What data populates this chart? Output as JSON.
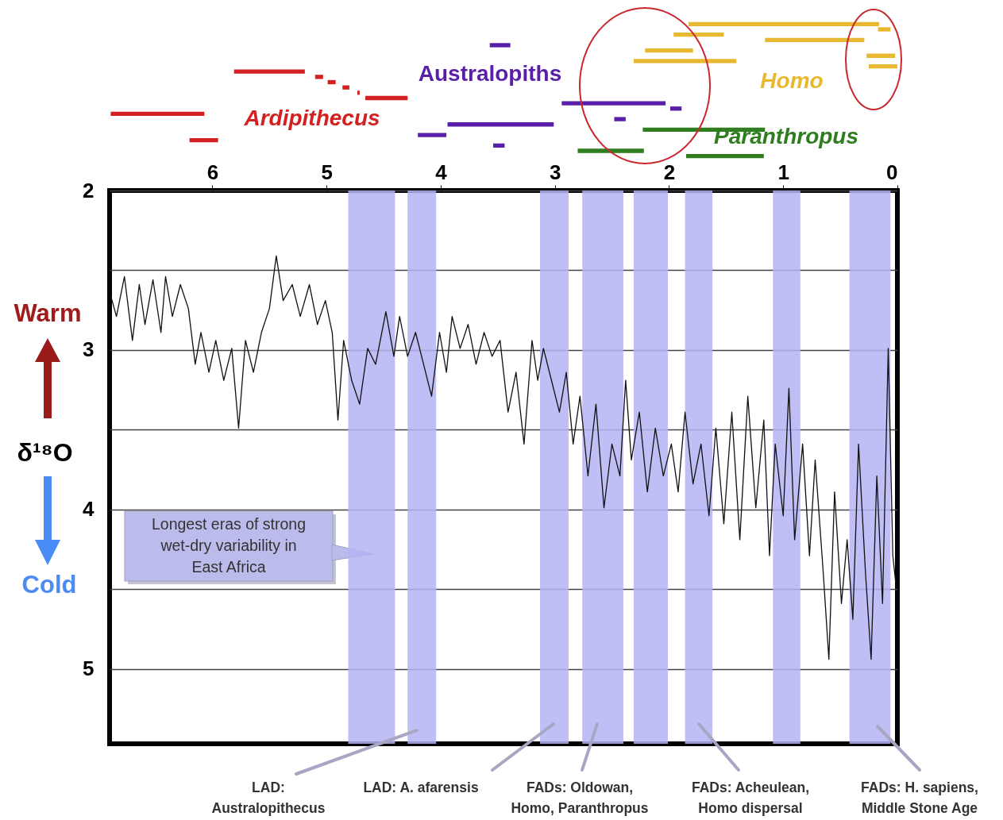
{
  "chart_data": [
    {
      "type": "bar",
      "orientation": "horizontal",
      "categories": [
        null,
        null,
        null,
        null,
        null,
        null,
        null,
        null,
        null,
        null,
        null,
        null,
        null,
        null,
        null,
        null,
        null,
        null,
        null,
        null,
        null,
        null,
        null,
        null,
        null,
        null
      ],
      "xlim": [
        6.9,
        0
      ],
      "xticks": [
        6,
        5,
        4,
        3,
        2,
        1,
        0
      ],
      "tick_labels": "x",
      "values": [
        1.67,
        0.11,
        0.44,
        0.87,
        0.18,
        0.42,
        0.25,
        0.9,
        0.25,
        0.62,
        0.07,
        0.07,
        0.06,
        0.02,
        0.37,
        0.91,
        0.1,
        0.82,
        0.1,
        0.93,
        1.07,
        0.25,
        0.25,
        0.1,
        0.58,
        0.68
      ],
      "base": [
        0.16,
        0.06,
        1.52,
        0.29,
        3.39,
        1.79,
        0.02,
        1.41,
        0,
        5.19,
        5.03,
        4.92,
        4.8,
        4.71,
        4.29,
        2.03,
        1.89,
        6.07,
        2.38,
        3.01,
        1.16,
        3.95,
        5.95,
        3.44,
        2.22,
        1.17
      ],
      "colors": [
        "#e8b830",
        "#e8b830",
        "#e8b830",
        "#e8b830",
        "#5a1fa8",
        "#e8b830",
        "#e8b830",
        "#e8b830",
        "#e8b830",
        "#d42020",
        "#d42020",
        "#d42020",
        "#d42020",
        "#d42020",
        "#d42020",
        "#5a1fa8",
        "#5a1fa8",
        "#d42020",
        "#5a1fa8",
        "#5a1fa8",
        "#2e7d1e",
        "#5a1fa8",
        "#d42020",
        "#5a1fa8",
        "#2e7d1e",
        "#2e7d1e"
      ],
      "annotations": [
        "Ardipithecus",
        "Australopiths",
        "Homo",
        "Paranthropus"
      ]
    },
    {
      "type": "line",
      "ylabel": "δ¹⁸O",
      "xlim": [
        6.9,
        0
      ],
      "xticks": [
        6,
        5,
        4,
        3,
        2,
        1,
        0
      ],
      "tick_labels": "y",
      "ylim": [
        5.47,
        2
      ],
      "yticks": [
        2,
        {
          "value": 2.5,
          "label": null
        },
        3,
        {
          "value": 3.5,
          "label": null
        },
        4,
        {
          "value": 4.5,
          "label": null
        },
        5
      ],
      "grid": "y",
      "x": [
        6.89,
        6.84,
        6.77,
        6.7,
        6.64,
        6.59,
        6.52,
        6.45,
        6.41,
        6.35,
        6.28,
        6.21,
        6.15,
        6.1,
        6.03,
        5.97,
        5.9,
        5.83,
        5.77,
        5.71,
        5.64,
        5.57,
        5.5,
        5.44,
        5.38,
        5.3,
        5.23,
        5.15,
        5.08,
        5.01,
        4.95,
        4.9,
        4.85,
        4.78,
        4.71,
        4.64,
        4.57,
        4.48,
        4.41,
        4.36,
        4.29,
        4.22,
        4.15,
        4.08,
        4.01,
        3.95,
        3.9,
        3.83,
        3.76,
        3.69,
        3.62,
        3.55,
        3.48,
        3.41,
        3.34,
        3.27,
        3.2,
        3.15,
        3.1,
        3.03,
        2.96,
        2.9,
        2.84,
        2.78,
        2.71,
        2.64,
        2.57,
        2.5,
        2.43,
        2.38,
        2.33,
        2.26,
        2.19,
        2.12,
        2.05,
        1.98,
        1.92,
        1.86,
        1.79,
        1.72,
        1.65,
        1.59,
        1.52,
        1.45,
        1.38,
        1.31,
        1.24,
        1.17,
        1.12,
        1.07,
        1.0,
        0.95,
        0.9,
        0.83,
        0.77,
        0.72,
        0.65,
        0.6,
        0.55,
        0.49,
        0.44,
        0.39,
        0.34,
        0.28,
        0.23,
        0.18,
        0.13,
        0.08,
        0.04,
        0.01
      ],
      "series": [
        {
          "color": "#111111",
          "values": [
            2.66,
            2.79,
            2.54,
            2.94,
            2.59,
            2.84,
            2.56,
            2.89,
            2.54,
            2.79,
            2.59,
            2.74,
            3.09,
            2.89,
            3.14,
            2.94,
            3.19,
            2.99,
            3.49,
            2.94,
            3.14,
            2.89,
            2.74,
            2.41,
            2.69,
            2.59,
            2.79,
            2.59,
            2.84,
            2.69,
            2.89,
            3.44,
            2.94,
            3.19,
            3.34,
            2.99,
            3.09,
            2.76,
            3.04,
            2.79,
            3.04,
            2.89,
            3.09,
            3.29,
            2.89,
            3.14,
            2.79,
            2.99,
            2.84,
            3.09,
            2.89,
            3.04,
            2.94,
            3.39,
            3.14,
            3.59,
            2.94,
            3.19,
            2.99,
            3.19,
            3.39,
            3.14,
            3.59,
            3.29,
            3.79,
            3.34,
            3.99,
            3.59,
            3.79,
            3.19,
            3.69,
            3.39,
            3.89,
            3.49,
            3.79,
            3.59,
            3.89,
            3.39,
            3.84,
            3.59,
            4.04,
            3.49,
            4.09,
            3.39,
            4.19,
            3.29,
            3.99,
            3.44,
            4.29,
            3.59,
            4.04,
            3.24,
            4.19,
            3.59,
            4.29,
            3.69,
            4.39,
            4.94,
            3.89,
            4.59,
            4.19,
            4.69,
            3.59,
            4.39,
            4.94,
            3.79,
            4.59,
            2.99,
            4.29,
            4.49
          ]
        }
      ],
      "bands": [
        {
          "axis": "x",
          "from": 4.81,
          "to": 4.4,
          "color": "#b4b4f4"
        },
        {
          "axis": "x",
          "from": 4.29,
          "to": 4.04,
          "color": "#b4b4f4"
        },
        {
          "axis": "x",
          "from": 3.13,
          "to": 2.88,
          "color": "#b4b4f4"
        },
        {
          "axis": "x",
          "from": 2.76,
          "to": 2.4,
          "color": "#b4b4f4"
        },
        {
          "axis": "x",
          "from": 2.31,
          "to": 2.01,
          "color": "#b4b4f4"
        },
        {
          "axis": "x",
          "from": 1.86,
          "to": 1.62,
          "color": "#b4b4f4"
        },
        {
          "axis": "x",
          "from": 1.09,
          "to": 0.85,
          "color": "#b4b4f4"
        },
        {
          "axis": "x",
          "from": 0.42,
          "to": 0.06,
          "color": "#b4b4f4"
        }
      ],
      "annotations": [
        "Warm",
        "Cold",
        "Longest eras of strong\nwet-dry variability in\nEast Africa",
        "LAD:\nAustralopithecus",
        "LAD: A. afarensis",
        "FADs: Oldowan,\nHomo, Paranthropus",
        "FADs: Acheulean,\nHomo dispersal",
        "FADs: H. sapiens,\nMiddle Stone Age"
      ]
    }
  ]
}
